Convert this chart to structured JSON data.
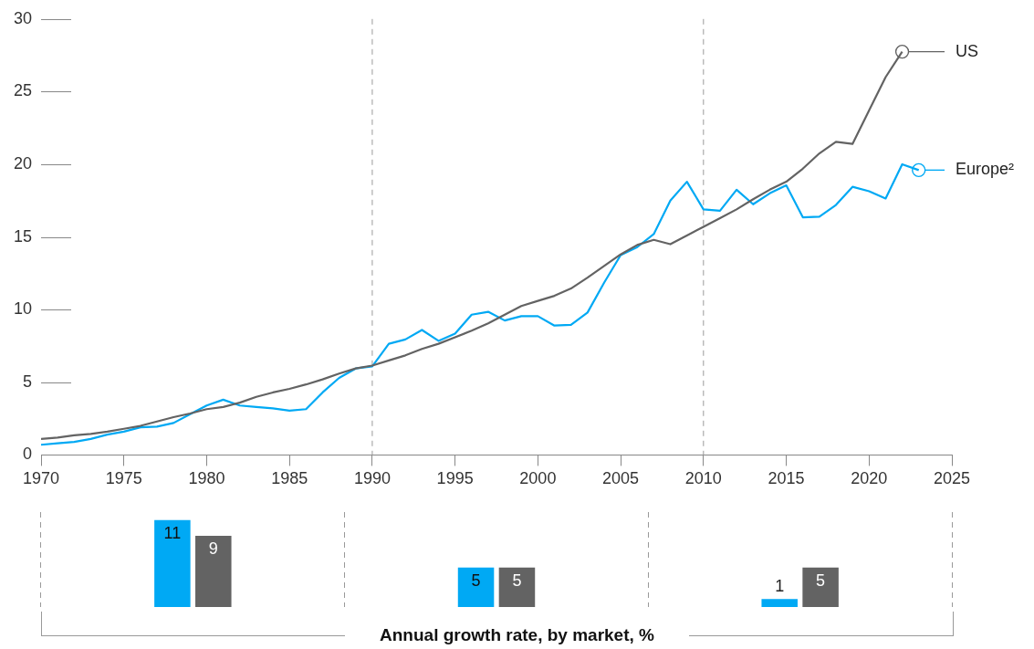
{
  "chart_data": [
    {
      "type": "line",
      "x": [
        1970,
        1971,
        1972,
        1973,
        1974,
        1975,
        1976,
        1977,
        1978,
        1979,
        1980,
        1981,
        1982,
        1983,
        1984,
        1985,
        1986,
        1987,
        1988,
        1989,
        1990,
        1991,
        1992,
        1993,
        1994,
        1995,
        1996,
        1997,
        1998,
        1999,
        2000,
        2001,
        2002,
        2003,
        2004,
        2005,
        2006,
        2007,
        2008,
        2009,
        2010,
        2011,
        2012,
        2013,
        2014,
        2015,
        2016,
        2017,
        2018,
        2019,
        2020,
        2021,
        2022,
        2023
      ],
      "series": [
        {
          "name": "US",
          "color": "#636363",
          "values": [
            1.1,
            1.2,
            1.35,
            1.45,
            1.6,
            1.8,
            2.0,
            2.3,
            2.6,
            2.85,
            3.15,
            3.3,
            3.6,
            4.0,
            4.3,
            4.55,
            4.85,
            5.2,
            5.6,
            5.95,
            6.15,
            6.5,
            6.85,
            7.3,
            7.65,
            8.1,
            8.55,
            9.05,
            9.65,
            10.25,
            10.6,
            10.95,
            11.45,
            12.2,
            13.0,
            13.8,
            14.45,
            14.8,
            14.5,
            15.1,
            15.7,
            16.3,
            16.9,
            17.6,
            18.25,
            18.8,
            19.7,
            20.75,
            21.55,
            21.4,
            23.7,
            26.0,
            27.75,
            null
          ]
        },
        {
          "name": "Europe²",
          "color": "#00a9f4",
          "values": [
            0.7,
            0.8,
            0.9,
            1.1,
            1.4,
            1.6,
            1.9,
            1.95,
            2.2,
            2.8,
            3.4,
            3.8,
            3.4,
            3.3,
            3.2,
            3.05,
            3.15,
            4.3,
            5.3,
            5.95,
            6.1,
            7.65,
            7.95,
            8.6,
            7.85,
            8.35,
            9.65,
            9.85,
            9.25,
            9.55,
            9.55,
            8.9,
            8.95,
            9.8,
            11.85,
            13.75,
            14.3,
            15.2,
            17.5,
            18.8,
            16.9,
            16.8,
            18.25,
            17.25,
            18.0,
            18.55,
            16.35,
            16.4,
            17.2,
            18.45,
            18.15,
            17.65,
            20.0,
            19.6
          ]
        }
      ],
      "xlim": [
        1970,
        2025
      ],
      "xticks": [
        1970,
        1975,
        1980,
        1985,
        1990,
        1995,
        2000,
        2005,
        2010,
        2015,
        2020,
        2025
      ],
      "ylim": [
        0,
        30
      ],
      "yticks": [
        0,
        5,
        10,
        15,
        20,
        25,
        30
      ],
      "grid": false,
      "legend": "right",
      "marker": "none",
      "line_style": "solid",
      "ref_lines": [
        {
          "axis": "x",
          "value": 1990,
          "color": "#9a9a9a",
          "line_style": "dashed"
        },
        {
          "axis": "x",
          "value": 2010,
          "color": "#9a9a9a",
          "line_style": "dashed"
        }
      ]
    },
    {
      "type": "bar",
      "categories": [
        null,
        null,
        null
      ],
      "xlabel": "Annual growth rate, by market, %",
      "series": [
        {
          "color": "#00a9f4",
          "values": [
            11,
            5,
            1
          ]
        },
        {
          "color": "#636363",
          "values": [
            9,
            5,
            5
          ]
        }
      ],
      "data_labels": true,
      "grid": "x",
      "legend": false,
      "tick_labels": false
    }
  ]
}
